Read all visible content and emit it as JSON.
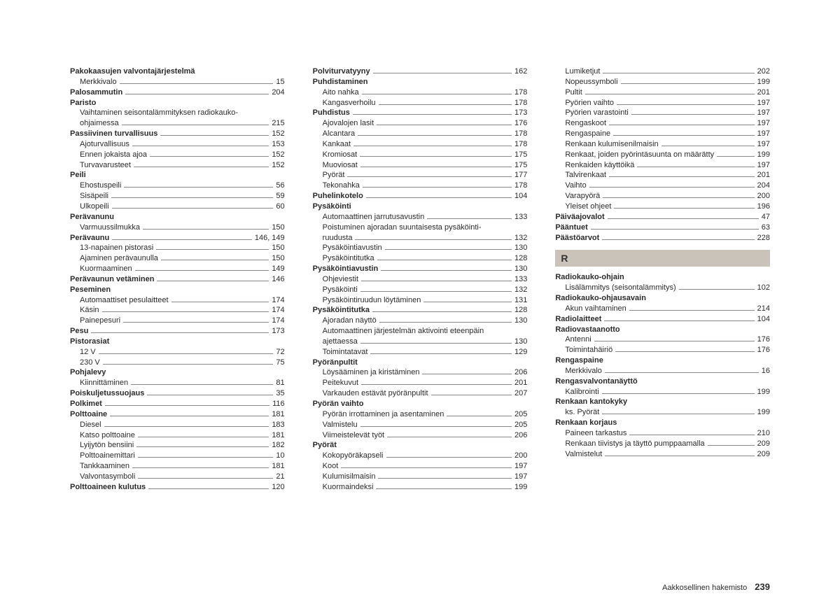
{
  "footer": {
    "label": "Aakkosellinen hakemisto",
    "page": "239"
  },
  "sectionHeader": "R",
  "columns": [
    [
      {
        "t": "h",
        "label": "Pakokaasujen valvontajärjestelmä"
      },
      {
        "t": "s",
        "label": "Merkkivalo",
        "page": "15"
      },
      {
        "t": "b",
        "label": "Palosammutin",
        "page": "204"
      },
      {
        "t": "h",
        "label": "Paristo"
      },
      {
        "t": "w",
        "label": "Vaihtaminen seisontalämmityksen radiokauko-"
      },
      {
        "t": "s",
        "label": "ohjaimessa",
        "page": "215"
      },
      {
        "t": "b",
        "label": "Passiivinen turvallisuus",
        "page": "152"
      },
      {
        "t": "s",
        "label": "Ajoturvallisuus",
        "page": "153"
      },
      {
        "t": "s",
        "label": "Ennen jokaista ajoa",
        "page": "152"
      },
      {
        "t": "s",
        "label": "Turvavarusteet",
        "page": "152"
      },
      {
        "t": "h",
        "label": "Peili"
      },
      {
        "t": "s",
        "label": "Ehostuspeili",
        "page": "56"
      },
      {
        "t": "s",
        "label": "Sisäpeili",
        "page": "59"
      },
      {
        "t": "s",
        "label": "Ulkopeili",
        "page": "60"
      },
      {
        "t": "h",
        "label": "Perävanunu"
      },
      {
        "t": "s",
        "label": "Varmuussilmukka",
        "page": "150"
      },
      {
        "t": "b",
        "label": "Perävaunu",
        "page": "146, 149"
      },
      {
        "t": "s",
        "label": "13-napainen pistorasi",
        "page": "150"
      },
      {
        "t": "s",
        "label": "Ajaminen perävaunulla",
        "page": "150"
      },
      {
        "t": "s",
        "label": "Kuormaaminen",
        "page": "149"
      },
      {
        "t": "b",
        "label": "Perävaunun vetäminen",
        "page": "146"
      },
      {
        "t": "h",
        "label": "Peseminen"
      },
      {
        "t": "s",
        "label": "Automaattiset pesulaitteet",
        "page": "174"
      },
      {
        "t": "s",
        "label": "Käsin",
        "page": "174"
      },
      {
        "t": "s",
        "label": "Painepesuri",
        "page": "174"
      },
      {
        "t": "b",
        "label": "Pesu",
        "page": "173"
      },
      {
        "t": "h",
        "label": "Pistorasiat"
      },
      {
        "t": "s",
        "label": "12 V",
        "page": "72"
      },
      {
        "t": "s",
        "label": "230 V",
        "page": "75"
      },
      {
        "t": "h",
        "label": "Pohjalevy"
      },
      {
        "t": "s",
        "label": "Kiinnittäminen",
        "page": "81"
      },
      {
        "t": "b",
        "label": "Poiskuljetussuojaus",
        "page": "35"
      },
      {
        "t": "b",
        "label": "Polkimet",
        "page": "116"
      },
      {
        "t": "b",
        "label": "Polttoaine",
        "page": "181"
      },
      {
        "t": "s",
        "label": "Diesel",
        "page": "183"
      },
      {
        "t": "s",
        "label": "Katso polttoaine",
        "page": "181"
      },
      {
        "t": "s",
        "label": "Lyijytön bensiini",
        "page": "182"
      },
      {
        "t": "s",
        "label": "Polttoainemittari",
        "page": "10"
      },
      {
        "t": "s",
        "label": "Tankkaaminen",
        "page": "181"
      },
      {
        "t": "s",
        "label": "Valvontasymboli",
        "page": "21"
      },
      {
        "t": "b",
        "label": "Polttoaineen kulutus",
        "page": "120"
      }
    ],
    [
      {
        "t": "b",
        "label": "Polviturvatyyny",
        "page": "162"
      },
      {
        "t": "h",
        "label": "Puhdistaminen"
      },
      {
        "t": "s",
        "label": "Aito nahka",
        "page": "178"
      },
      {
        "t": "s",
        "label": "Kangasverhoilu",
        "page": "178"
      },
      {
        "t": "b",
        "label": "Puhdistus",
        "page": "173"
      },
      {
        "t": "s",
        "label": "Ajovalojen lasit",
        "page": "176"
      },
      {
        "t": "s",
        "label": "Alcantara",
        "page": "178"
      },
      {
        "t": "s",
        "label": "Kankaat",
        "page": "178"
      },
      {
        "t": "s",
        "label": "Kromiosat",
        "page": "175"
      },
      {
        "t": "s",
        "label": "Muoviosat",
        "page": "175"
      },
      {
        "t": "s",
        "label": "Pyörät",
        "page": "177"
      },
      {
        "t": "s",
        "label": "Tekonahka",
        "page": "178"
      },
      {
        "t": "b",
        "label": "Puhelinkotelo",
        "page": "104"
      },
      {
        "t": "h",
        "label": "Pysäköinti"
      },
      {
        "t": "s",
        "label": "Automaattinen jarrutusavustin",
        "page": "133"
      },
      {
        "t": "w",
        "label": "Poistuminen ajoradan suuntaisesta pysäköinti-"
      },
      {
        "t": "s",
        "label": "ruudusta",
        "page": "132"
      },
      {
        "t": "s",
        "label": "Pysäköintiavustin",
        "page": "130"
      },
      {
        "t": "s",
        "label": "Pysäköintitutka",
        "page": "128"
      },
      {
        "t": "b",
        "label": "Pysäköintiavustin",
        "page": "130"
      },
      {
        "t": "s",
        "label": "Ohjeviestit",
        "page": "133"
      },
      {
        "t": "s",
        "label": "Pysäköinti",
        "page": "132"
      },
      {
        "t": "s",
        "label": "Pysäköintiruudun löytäminen",
        "page": "131"
      },
      {
        "t": "b",
        "label": "Pysäköintitutka",
        "page": "128"
      },
      {
        "t": "s",
        "label": "Ajoradan näyttö",
        "page": "130"
      },
      {
        "t": "w",
        "label": "Automaattinen järjestelmän aktivointi eteenpäin"
      },
      {
        "t": "s",
        "label": "ajettaessa",
        "page": "130"
      },
      {
        "t": "s",
        "label": "Toimintatavat",
        "page": "129"
      },
      {
        "t": "h",
        "label": "Pyöränpultit"
      },
      {
        "t": "s",
        "label": "Löysääminen ja kiristäminen",
        "page": "206"
      },
      {
        "t": "s",
        "label": "Peitekuvut",
        "page": "201"
      },
      {
        "t": "s",
        "label": "Varkauden estävät pyöränpultit",
        "page": "207"
      },
      {
        "t": "h",
        "label": "Pyörän vaihto"
      },
      {
        "t": "s",
        "label": "Pyörän irrottaminen ja asentaminen",
        "page": "205"
      },
      {
        "t": "s",
        "label": "Valmistelu",
        "page": "205"
      },
      {
        "t": "s",
        "label": "Viimeistelevät työt",
        "page": "206"
      },
      {
        "t": "h",
        "label": "Pyörät"
      },
      {
        "t": "s",
        "label": "Kokopyöräkapseli",
        "page": "200"
      },
      {
        "t": "s",
        "label": "Koot",
        "page": "197"
      },
      {
        "t": "s",
        "label": "Kulumisilmaisin",
        "page": "197"
      },
      {
        "t": "s",
        "label": "Kuormaindeksi",
        "page": "199"
      }
    ],
    [
      {
        "t": "s",
        "label": "Lumiketjut",
        "page": "202"
      },
      {
        "t": "s",
        "label": "Nopeussymboli",
        "page": "199"
      },
      {
        "t": "s",
        "label": "Pultit",
        "page": "201"
      },
      {
        "t": "s",
        "label": "Pyörien vaihto",
        "page": "197"
      },
      {
        "t": "s",
        "label": "Pyörien varastointi",
        "page": "197"
      },
      {
        "t": "s",
        "label": "Rengaskoot",
        "page": "197"
      },
      {
        "t": "s",
        "label": "Rengaspaine",
        "page": "197"
      },
      {
        "t": "s",
        "label": "Renkaan kulumisenilmaisin",
        "page": "197"
      },
      {
        "t": "s",
        "label": "Renkaat, joiden pyörintäsuunta on määrätty",
        "page": "199"
      },
      {
        "t": "s",
        "label": "Renkaiden käyttöikä",
        "page": "197"
      },
      {
        "t": "s",
        "label": "Talvirenkaat",
        "page": "201"
      },
      {
        "t": "s",
        "label": "Vaihto",
        "page": "204"
      },
      {
        "t": "s",
        "label": "Varapyörä",
        "page": "200"
      },
      {
        "t": "s",
        "label": "Yleiset ohjeet",
        "page": "196"
      },
      {
        "t": "b",
        "label": "Päiväajovalot",
        "page": "47"
      },
      {
        "t": "b",
        "label": "Pääntuet",
        "page": "63"
      },
      {
        "t": "b",
        "label": "Päästöarvot",
        "page": "228"
      },
      {
        "t": "section"
      },
      {
        "t": "h",
        "label": "Radiokauko-ohjain"
      },
      {
        "t": "s",
        "label": "Lisälämmitys (seisontalämmitys)",
        "page": "102"
      },
      {
        "t": "h",
        "label": "Radiokauko-ohjausavain"
      },
      {
        "t": "s",
        "label": "Akun vaihtaminen",
        "page": "214"
      },
      {
        "t": "b",
        "label": "Radiolaitteet",
        "page": "104"
      },
      {
        "t": "h",
        "label": "Radiovastaanotto"
      },
      {
        "t": "s",
        "label": "Antenni",
        "page": "176"
      },
      {
        "t": "s",
        "label": "Toimintahäiriö",
        "page": "176"
      },
      {
        "t": "h",
        "label": "Rengaspaine"
      },
      {
        "t": "s",
        "label": "Merkkivalo",
        "page": "16"
      },
      {
        "t": "h",
        "label": "Rengasvalvontanäyttö"
      },
      {
        "t": "s",
        "label": "Kalibrointi",
        "page": "199"
      },
      {
        "t": "h",
        "label": "Renkaan kantokyky"
      },
      {
        "t": "s",
        "label": "ks. Pyörät",
        "page": "199"
      },
      {
        "t": "h",
        "label": "Renkaan korjaus"
      },
      {
        "t": "s",
        "label": "Paineen tarkastus",
        "page": "210"
      },
      {
        "t": "s",
        "label": "Renkaan tiivistys ja täyttö pumppaamalla",
        "page": "209"
      },
      {
        "t": "s",
        "label": "Valmistelut",
        "page": "209"
      }
    ]
  ]
}
